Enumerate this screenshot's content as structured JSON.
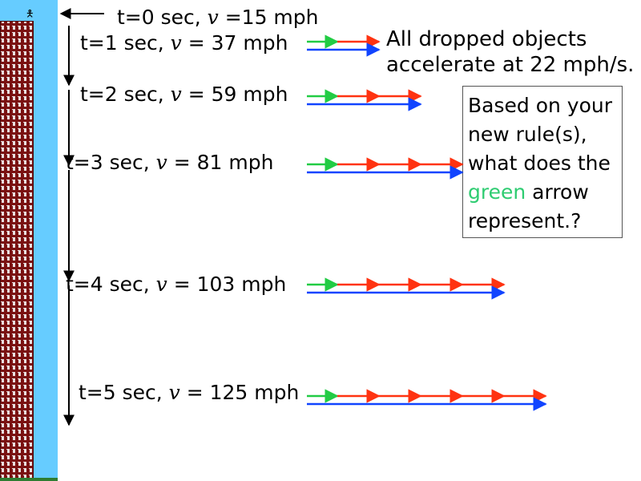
{
  "labels": [
    {
      "prefix": "t=0 sec, ",
      "v": "v",
      "rest": " =15 mph"
    },
    {
      "prefix": "t=1 sec, ",
      "v": "v",
      "rest": " = 37 mph"
    },
    {
      "prefix": "t=2 sec, ",
      "v": "v",
      "rest": " = 59 mph"
    },
    {
      "prefix": "t=3 sec, ",
      "v": "v",
      "rest": " = 81 mph"
    },
    {
      "prefix": "t=4 sec, ",
      "v": "v",
      "rest": " = 103 mph"
    },
    {
      "prefix": "t=5 sec, ",
      "v": "v",
      "rest": " = 125 mph"
    }
  ],
  "statement": {
    "line1": "All dropped objects",
    "line2": "accelerate at 22 mph/s."
  },
  "question": {
    "line1": "Based on your",
    "line2": "new rule(s),",
    "line3": "what does the",
    "green_word": "green",
    "line4_rest": " arrow",
    "line5": "represent.?"
  },
  "colors": {
    "green_arrow": "#22cc44",
    "red_arrow": "#ff3311",
    "blue_arrow": "#1144ff",
    "sky": "#66ccff",
    "building": "#7a1111"
  },
  "vector_rows": [
    {
      "green_segments": 1,
      "red_segments": 1
    },
    {
      "green_segments": 1,
      "red_segments": 2
    },
    {
      "green_segments": 1,
      "red_segments": 3
    },
    {
      "green_segments": 1,
      "red_segments": 4
    },
    {
      "green_segments": 1,
      "red_segments": 5
    }
  ]
}
